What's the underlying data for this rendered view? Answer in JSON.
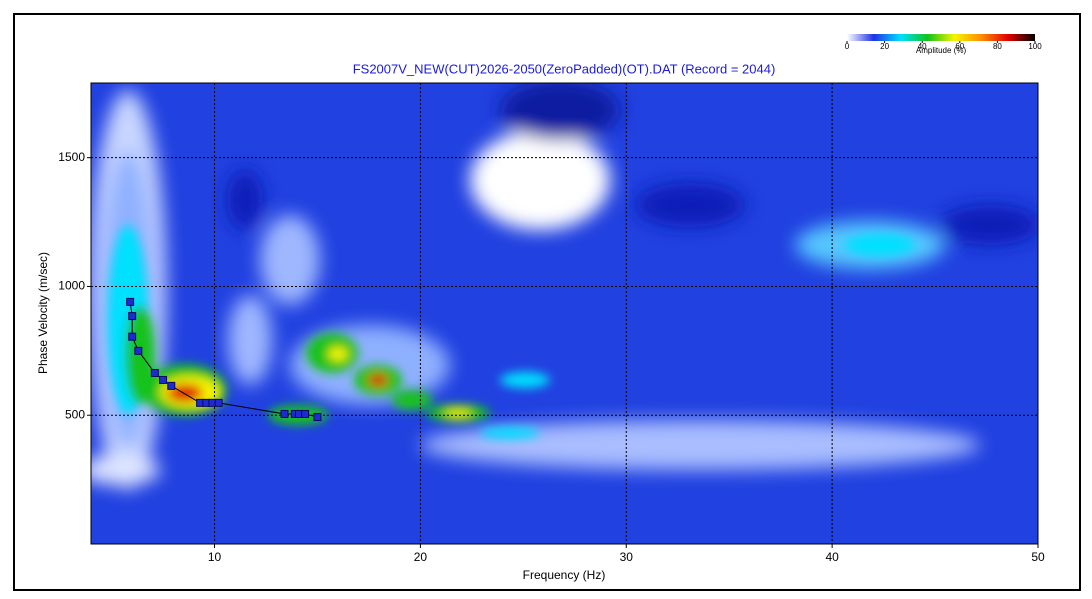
{
  "chart_data": {
    "type": "scatter",
    "title": "FS2007V_NEW(CUT)2026-2050(ZeroPadded)(OT).DAT (Record = 2044)",
    "x_label": "Frequency (Hz)",
    "y_label": "Phase Velocity (m/sec)",
    "xlim": [
      4,
      50
    ],
    "ylim": [
      0,
      1790
    ],
    "xticks": [
      10,
      20,
      30,
      40,
      50
    ],
    "yticks": [
      500,
      1000,
      1500
    ],
    "grid": true,
    "series": [
      {
        "color": "#1d2bd0",
        "x": [
          5.9,
          6.0,
          6.0,
          6.3,
          7.1,
          7.5,
          7.9,
          9.3,
          9.6,
          9.9,
          10.2,
          13.4,
          13.9,
          14.1,
          14.4,
          15.0
        ],
        "values": [
          940,
          885,
          805,
          750,
          664,
          637,
          614,
          548,
          548,
          548,
          548,
          505,
          505,
          505,
          505,
          493
        ]
      }
    ],
    "colorbar": {
      "label": "Amplitude (%)",
      "lim": [
        0,
        100
      ],
      "ticks": [
        0,
        20,
        40,
        60,
        80,
        100
      ],
      "colors": [
        "#ffffff",
        "#1e32e6",
        "#00e0ff",
        "#12c21a",
        "#f5f500",
        "#ff8c00",
        "#e00000",
        "#000000"
      ]
    }
  }
}
